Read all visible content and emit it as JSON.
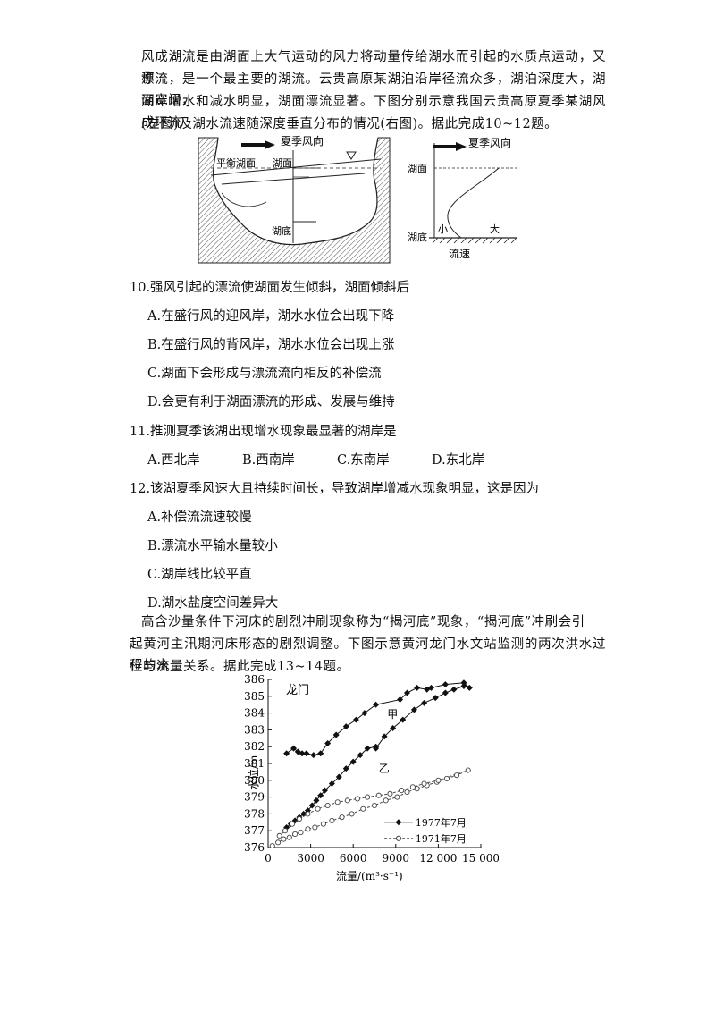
{
  "passage1": {
    "lines": [
      "风成湖流是由湖面上大气运动的风力将动量传给湖水而引起的水质点运动，又称",
      "漂流，是一个最主要的湖流。云贵高原某湖泊沿岸径流众多，湖泊深度大，湖面宽阔，",
      "湖岸增水和减水明显，湖面漂流显著。下图分别示意我国云贵高原夏季某湖风成环流",
      "(左图)及湖水流速随深度垂直分布的情况(右图)。据此完成10~12题。"
    ]
  },
  "figure1": {
    "left": {
      "wind": "夏季风向",
      "balance": "平衡湖面",
      "surface": "湖面",
      "bottom": "湖底"
    },
    "right": {
      "wind": "夏季风向",
      "surface": "湖面",
      "bottom": "湖底",
      "small": "小",
      "large": "大",
      "xlabel": "流速"
    }
  },
  "q10": {
    "stem": "10.强风引起的漂流使湖面发生倾斜，湖面倾斜后",
    "options": [
      "A.在盛行风的迎风岸，湖水水位会出现下降",
      "B.在盛行风的背风岸，湖水水位会出现上涨",
      "C.湖面下会形成与漂流流向相反的补偿流",
      "D.会更有利于湖面漂流的形成、发展与维持"
    ]
  },
  "q11": {
    "stem": "11.推测夏季该湖出现增水现象最显著的湖岸是",
    "options": [
      "A.西北岸",
      "B.西南岸",
      "C.东南岸",
      "D.东北岸"
    ]
  },
  "q12": {
    "stem": "12.该湖夏季风速大且持续时间长，导致湖岸增减水现象明显，这是因为",
    "options": [
      "A.补偿流流速较慢",
      "B.漂流水平输水量较小",
      "C.湖岸线比较平直",
      "D.湖水盐度空间差异大"
    ]
  },
  "passage2": {
    "lines": [
      "高含沙量条件下河床的剧烈冲刷现象称为“揭河底”现象，“揭河底”冲刷会引",
      "起黄河主汛期河床形态的剧烈调整。下图示意黄河龙门水文站监测的两次洪水过程的水",
      "位与流量关系。据此完成13~14题。"
    ]
  },
  "chart_data": {
    "type": "line",
    "title": "龙门",
    "xlabel": "流量/(m³·s⁻¹)",
    "ylabel": "水位/m",
    "xlim": [
      0,
      15000
    ],
    "ylim": [
      376,
      386
    ],
    "xticks": [
      "0",
      "3000",
      "6000",
      "9000",
      "12 000",
      "15 000"
    ],
    "yticks": [
      376,
      377,
      378,
      379,
      380,
      381,
      382,
      383,
      384,
      385,
      386
    ],
    "annotations": [
      "甲",
      "乙"
    ],
    "legend_position": "bottom-right",
    "series": [
      {
        "name": "1977年7月",
        "marker": "diamond",
        "color": "#111111",
        "x": [
          1300,
          1600,
          1900,
          2200,
          2500,
          2800,
          3100,
          3400,
          3700,
          4000,
          4500,
          5000,
          5500,
          6000,
          6500,
          7000,
          7600,
          7600,
          8200,
          8800,
          9500,
          10300,
          11000,
          11800,
          12500,
          13100,
          13800,
          14200,
          13800,
          12500,
          11500,
          11200,
          10500,
          9800,
          9300,
          7600,
          6800,
          6200,
          5500,
          4800,
          4200,
          3700,
          3200,
          2700,
          2400,
          2100,
          1800,
          1300
        ],
        "y": [
          377.2,
          377.4,
          377.6,
          377.8,
          378.0,
          378.2,
          378.5,
          378.8,
          379.1,
          379.4,
          379.8,
          380.2,
          380.7,
          381.1,
          381.5,
          381.9,
          382.0,
          381.9,
          382.6,
          383.1,
          383.6,
          384.2,
          384.6,
          384.9,
          385.2,
          385.4,
          385.6,
          385.5,
          385.8,
          385.7,
          385.5,
          385.4,
          385.5,
          385.2,
          384.8,
          384.5,
          384.0,
          383.6,
          383.2,
          382.7,
          382.2,
          381.6,
          381.5,
          381.6,
          381.6,
          381.7,
          381.9,
          381.6
        ]
      },
      {
        "name": "1971年7月",
        "marker": "circle",
        "color": "#444444",
        "x": [
          300,
          700,
          1100,
          1500,
          1900,
          2300,
          2800,
          3300,
          3900,
          4500,
          5200,
          5900,
          6700,
          7500,
          8300,
          9100,
          9800,
          10500,
          11200,
          11900,
          12600,
          13300,
          14100,
          12000,
          11000,
          10200,
          9400,
          8600,
          7800,
          7000,
          6300,
          5600,
          4900,
          4200,
          3500,
          2800,
          2200,
          1700,
          1200,
          800
        ],
        "y": [
          376.1,
          376.3,
          376.5,
          376.6,
          376.8,
          376.9,
          377.1,
          377.2,
          377.4,
          377.6,
          377.8,
          378.0,
          378.3,
          378.5,
          378.8,
          379.0,
          379.3,
          379.5,
          379.7,
          379.9,
          380.1,
          380.3,
          380.6,
          380.0,
          379.8,
          379.6,
          379.4,
          379.2,
          379.1,
          379.0,
          378.9,
          378.8,
          378.7,
          378.5,
          378.3,
          378.0,
          377.7,
          377.4,
          377.0,
          376.7
        ]
      }
    ]
  }
}
